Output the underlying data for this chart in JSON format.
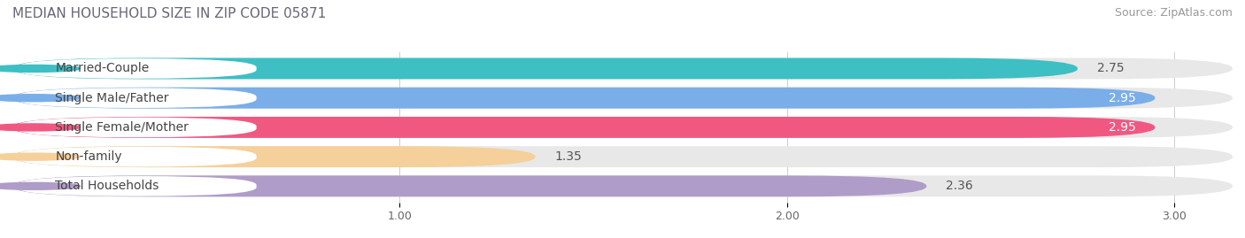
{
  "title": "MEDIAN HOUSEHOLD SIZE IN ZIP CODE 05871",
  "source": "Source: ZipAtlas.com",
  "categories": [
    "Married-Couple",
    "Single Male/Father",
    "Single Female/Mother",
    "Non-family",
    "Total Households"
  ],
  "values": [
    2.75,
    2.95,
    2.95,
    1.35,
    2.36
  ],
  "bar_colors": [
    "#3dbfc4",
    "#7aaee8",
    "#f05882",
    "#f5d09a",
    "#b09cc8"
  ],
  "dot_colors": [
    "#3dbfc4",
    "#7aaee8",
    "#f05882",
    "#f5d09a",
    "#b09cc8"
  ],
  "value_label_colors": [
    "#ffffff",
    "#ffffff",
    "#ffffff",
    "#c8a060",
    "#ffffff"
  ],
  "xlim_min": 0.0,
  "xlim_max": 3.15,
  "xstart": 0.0,
  "xticks": [
    1.0,
    2.0,
    3.0
  ],
  "xtick_labels": [
    "1.00",
    "2.00",
    "3.00"
  ],
  "title_fontsize": 11,
  "source_fontsize": 9,
  "label_fontsize": 10,
  "value_fontsize": 10,
  "bg_color": "#ffffff",
  "bar_bg_color": "#e8e8e8",
  "bar_height": 0.72,
  "bar_gap": 0.28
}
